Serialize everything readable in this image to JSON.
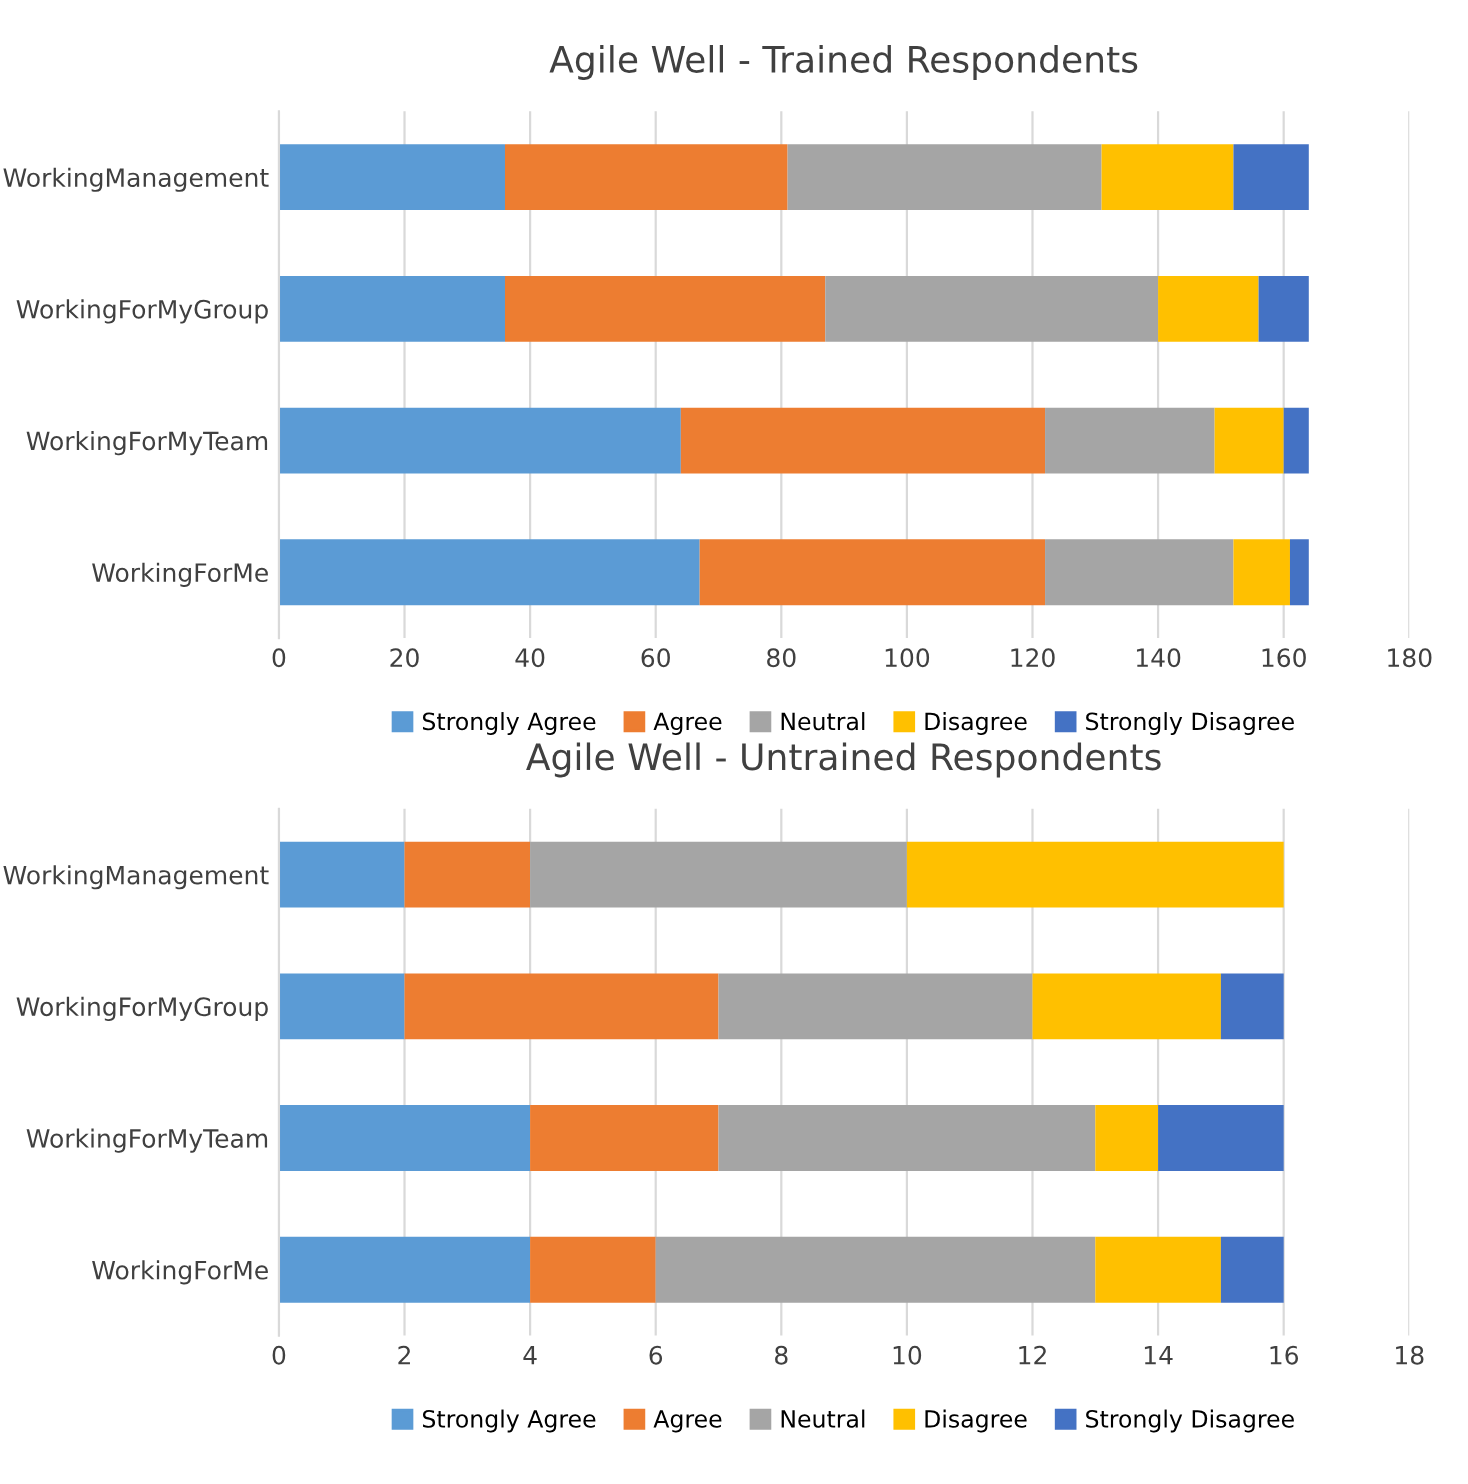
{
  "chart_data": [
    {
      "type": "bar",
      "orientation": "horizontal",
      "stacked": true,
      "title": "Agile Well - Trained Respondents",
      "categories": [
        "WorkingManagement",
        "WorkingForMyGroup",
        "WorkingForMyTeam",
        "WorkingForMe"
      ],
      "series": [
        {
          "name": "Strongly Agree",
          "color": "#5b9bd5",
          "values": [
            36,
            36,
            64,
            67
          ]
        },
        {
          "name": "Agree",
          "color": "#ed7d31",
          "values": [
            45,
            51,
            58,
            55
          ]
        },
        {
          "name": "Neutral",
          "color": "#a5a5a5",
          "values": [
            50,
            53,
            27,
            30
          ]
        },
        {
          "name": "Disagree",
          "color": "#ffc000",
          "values": [
            21,
            16,
            11,
            9
          ]
        },
        {
          "name": "Strongly Disagree",
          "color": "#4472c4",
          "values": [
            12,
            8,
            4,
            3
          ]
        }
      ],
      "xlim": [
        0,
        180
      ],
      "xticks": [
        0,
        20,
        40,
        60,
        80,
        100,
        120,
        140,
        160,
        180
      ],
      "grid": "x",
      "legend": "bottom"
    },
    {
      "type": "bar",
      "orientation": "horizontal",
      "stacked": true,
      "title": "Agile Well - Untrained Respondents",
      "categories": [
        "WorkingManagement",
        "WorkingForMyGroup",
        "WorkingForMyTeam",
        "WorkingForMe"
      ],
      "series": [
        {
          "name": "Strongly Agree",
          "color": "#5b9bd5",
          "values": [
            2,
            2,
            4,
            4
          ]
        },
        {
          "name": "Agree",
          "color": "#ed7d31",
          "values": [
            2,
            5,
            3,
            2
          ]
        },
        {
          "name": "Neutral",
          "color": "#a5a5a5",
          "values": [
            6,
            5,
            6,
            7
          ]
        },
        {
          "name": "Disagree",
          "color": "#ffc000",
          "values": [
            6,
            3,
            1,
            2
          ]
        },
        {
          "name": "Strongly Disagree",
          "color": "#4472c4",
          "values": [
            0,
            1,
            2,
            1
          ]
        }
      ],
      "xlim": [
        0,
        18
      ],
      "xticks": [
        0,
        2,
        4,
        6,
        8,
        10,
        12,
        14,
        16,
        18
      ],
      "grid": "x",
      "legend": "bottom"
    }
  ]
}
